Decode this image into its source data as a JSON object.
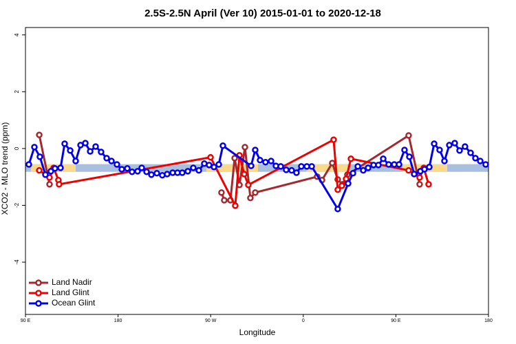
{
  "chart_data": {
    "type": "line",
    "title": "2.5S-2.5N April (Ver 10)   2015-01-01 to 2020-12-18",
    "x_label": "Longitude",
    "y_label": "XCO2 - MLO trend (ppm)",
    "xlim": [
      90,
      540
    ],
    "xticks": [
      {
        "value": 90,
        "label": "90 E"
      },
      {
        "value": 180,
        "label": "180"
      },
      {
        "value": 270,
        "label": "90 W"
      },
      {
        "value": 360,
        "label": "0"
      },
      {
        "value": 450,
        "label": "90 E"
      },
      {
        "value": 540,
        "label": "180"
      }
    ],
    "ylim": [
      -5.84,
      4.26
    ],
    "yticks": [
      -4,
      -2,
      0,
      2,
      4
    ],
    "legend": "bottom-left",
    "bands": [
      {
        "color": "#a9bfe0",
        "x": [
          90,
          540
        ],
        "y": [
          -0.82,
          -0.55
        ]
      },
      {
        "color": "#fcd98a",
        "x": [
          95.3,
          138.8
        ],
        "y": [
          -0.82,
          -0.55
        ]
      },
      {
        "color": "#fcd98a",
        "x": [
          265.8,
          316
        ],
        "y": [
          -0.82,
          -0.55
        ]
      },
      {
        "color": "#fcd98a",
        "x": [
          362.8,
          402.9
        ],
        "y": [
          -0.82,
          -0.55
        ]
      },
      {
        "color": "#fcd98a",
        "x": [
          456.4,
          499.9
        ],
        "y": [
          -0.82,
          -0.55
        ]
      }
    ],
    "series": [
      {
        "name": "Land Nadir",
        "color": "#a3292e",
        "x": [
          103.4,
          113.4,
          133.5,
          280.5,
          283.2,
          289.2,
          293.3,
          298,
          303.3,
          308.6,
          313.3,
          373.5,
          378.2,
          388.2,
          393.5,
          398.2,
          402.9,
          462.4,
          473.1,
          492.5
        ],
        "values": [
          0.48,
          -1.26,
          null,
          -1.55,
          -1.82,
          -1.82,
          -0.34,
          -1.28,
          0.05,
          -1.74,
          -1.55,
          -0.99,
          -1.11,
          -0.51,
          -1.09,
          -1.26,
          -0.92,
          0.46,
          -1.26,
          null
        ]
      },
      {
        "name": "Land Glint",
        "color": "#ee0000",
        "x": [
          103.4,
          113.4,
          117.4,
          122,
          122.7,
          269.9,
          293.9,
          298,
          302.6,
          306.6,
          389.5,
          393.5,
          397.5,
          401.6,
          406.3,
          462.4,
          473.1,
          477.1,
          481.8
        ],
        "values": [
          -0.77,
          -1.02,
          -0.68,
          -1.11,
          -1.26,
          -0.31,
          -2.01,
          -0.24,
          -0.9,
          -1.28,
          0.31,
          -1.45,
          -1.31,
          -1.07,
          -0.36,
          -0.77,
          -1.02,
          -0.68,
          -1.26
        ]
      },
      {
        "name": "Ocean Glint",
        "color": "#0000ee",
        "x": [
          93.3,
          98.7,
          104,
          109.4,
          114.7,
          118.7,
          124.1,
          128.1,
          133.5,
          138.8,
          143.5,
          148.2,
          152.9,
          158.2,
          163.5,
          168.9,
          173.6,
          178.9,
          183.6,
          189,
          193.6,
          199,
          203,
          207.7,
          212.4,
          217.7,
          223,
          227.7,
          233.1,
          237.8,
          242.4,
          247.8,
          253.1,
          258.5,
          263.8,
          268.5,
          273.2,
          277.9,
          281.9,
          309.3,
          313.3,
          318,
          323.3,
          328.7,
          333.4,
          338.1,
          343.4,
          348.7,
          353.4,
          358.1,
          363.5,
          368.2,
          393.5,
          403.6,
          408.3,
          413,
          418.3,
          423,
          428.3,
          433,
          437.7,
          443,
          448.4,
          453.1,
          458.4,
          463.1,
          467.8,
          473.8,
          477.8,
          482.5,
          487.2,
          492.5,
          497.2,
          501.9,
          507.2,
          511.9,
          517.2,
          522.6,
          527.3,
          532,
          537.3
        ],
        "values": [
          -0.56,
          0.05,
          -0.29,
          -0.92,
          -0.8,
          -0.7,
          -0.68,
          0.17,
          -0.07,
          -0.44,
          0.12,
          0.19,
          -0.1,
          0.07,
          -0.12,
          -0.34,
          -0.44,
          -0.56,
          -0.73,
          -0.7,
          -0.82,
          -0.8,
          -0.68,
          -0.82,
          -0.92,
          -0.87,
          -0.94,
          -0.9,
          -0.85,
          -0.85,
          -0.85,
          -0.8,
          -0.68,
          -0.77,
          -0.53,
          -0.58,
          -0.65,
          -0.56,
          0.1,
          -0.61,
          -0.05,
          -0.41,
          -0.48,
          -0.44,
          -0.61,
          -0.63,
          -0.75,
          -0.77,
          -0.85,
          -0.63,
          -0.63,
          -0.63,
          -2.13,
          -1.23,
          -0.87,
          -0.63,
          -0.77,
          -0.68,
          -0.58,
          -0.58,
          -0.36,
          -0.56,
          -0.56,
          -0.56,
          -0.05,
          -0.29,
          -0.9,
          -0.8,
          -0.73,
          -0.65,
          0.17,
          -0.05,
          -0.44,
          0.12,
          0.19,
          -0.07,
          0.07,
          -0.15,
          -0.34,
          -0.44,
          -0.56
        ]
      }
    ]
  }
}
